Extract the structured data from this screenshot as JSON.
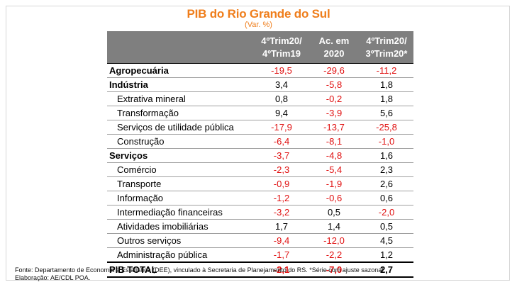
{
  "title": "PIB do Rio Grande do Sul",
  "subtitle": "(Var. %)",
  "table": {
    "headers": [
      {
        "line1": "",
        "line2": ""
      },
      {
        "line1": "4ºTrim20/",
        "line2": "4ºTrim19"
      },
      {
        "line1": "Ac. em",
        "line2": "2020"
      },
      {
        "line1": "4ºTrim20/",
        "line2": "3ºTrim20*"
      }
    ],
    "rows": [
      {
        "label": "Agropecuária",
        "level": 0,
        "v1": "-19,5",
        "v2": "-29,6",
        "v3": "-11,2"
      },
      {
        "label": "Indústria",
        "level": 0,
        "v1": "3,4",
        "v2": "-5,8",
        "v3": "1,8"
      },
      {
        "label": "Extrativa mineral",
        "level": 1,
        "v1": "0,8",
        "v2": "-0,2",
        "v3": "1,8"
      },
      {
        "label": "Transformação",
        "level": 1,
        "v1": "9,4",
        "v2": "-3,9",
        "v3": "5,6"
      },
      {
        "label": "Serviços de utilidade pública",
        "level": 1,
        "v1": "-17,9",
        "v2": "-13,7",
        "v3": "-25,8"
      },
      {
        "label": "Construção",
        "level": 1,
        "v1": "-6,4",
        "v2": "-8,1",
        "v3": "-1,0"
      },
      {
        "label": "Serviços",
        "level": 0,
        "v1": "-3,7",
        "v2": "-4,8",
        "v3": "1,6"
      },
      {
        "label": "Comércio",
        "level": 1,
        "v1": "-2,3",
        "v2": "-5,4",
        "v3": "2,3"
      },
      {
        "label": "Transporte",
        "level": 1,
        "v1": "-0,9",
        "v2": "-1,9",
        "v3": "2,6"
      },
      {
        "label": "Informação",
        "level": 1,
        "v1": "-1,2",
        "v2": "-0,6",
        "v3": "0,6"
      },
      {
        "label": "Intermediação financeiras",
        "level": 1,
        "v1": "-3,2",
        "v2": "0,5",
        "v3": "-2,0"
      },
      {
        "label": "Atividades imobiliárias",
        "level": 1,
        "v1": "1,7",
        "v2": "1,4",
        "v3": "0,5"
      },
      {
        "label": "Outros serviços",
        "level": 1,
        "v1": "-9,4",
        "v2": "-12,0",
        "v3": "4,5"
      },
      {
        "label": "Administração pública",
        "level": 1,
        "v1": "-1,7",
        "v2": "-2,2",
        "v3": "1,2"
      }
    ],
    "total": {
      "label": "PIB TOTAL",
      "v1": "-2,1",
      "v2": "-7,0",
      "v3": "2,7"
    }
  },
  "footnote": {
    "line1": "Fonte: Departamento de Economia e Estatística (DEE), vinculado à Secretaria de Planejamento do RS. *Série com ajuste sazonal.",
    "line2": "Elaboração: AE/CDL POA."
  },
  "colors": {
    "title": "#ef7d1a",
    "header_bg": "#7f7f7f",
    "negative": "#e01010"
  }
}
